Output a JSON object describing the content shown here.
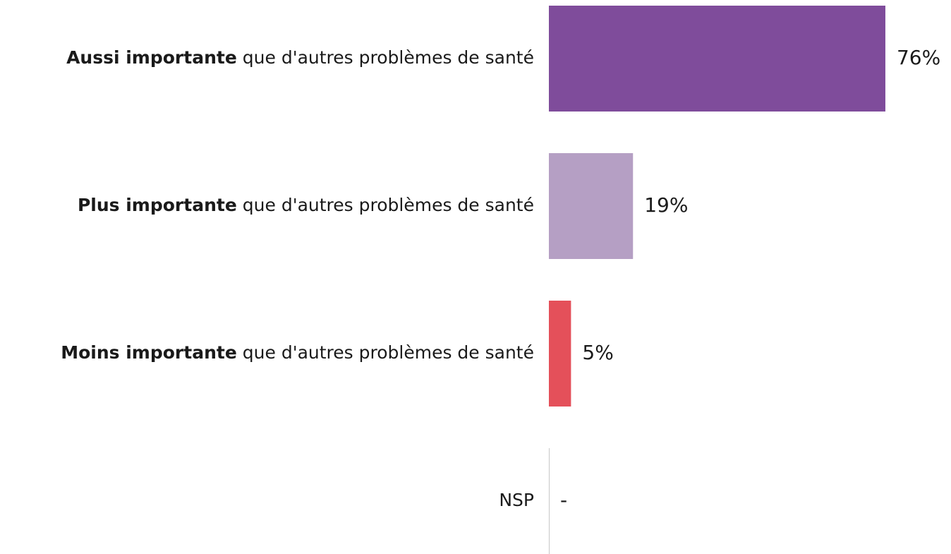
{
  "chart_data": {
    "type": "hbar",
    "categories": [
      {
        "bold": "Aussi importante",
        "rest": "que d'autres problèmes de santé"
      },
      {
        "bold": "Plus importante",
        "rest": "que d'autres problèmes de santé"
      },
      {
        "bold": "Moins importante",
        "rest": "que d'autres problèmes de santé"
      },
      {
        "rest": "NSP"
      }
    ],
    "values": [
      76,
      19,
      5,
      null
    ],
    "value_labels": [
      "76%",
      "19%",
      "5%",
      "-"
    ],
    "colors": [
      "#7f4c9b",
      "#b59fc4",
      "#e4505a",
      null
    ],
    "xlim": [
      0,
      100
    ]
  }
}
